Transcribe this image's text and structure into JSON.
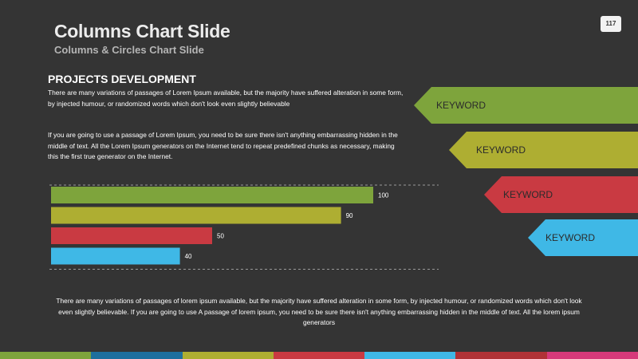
{
  "slide": {
    "title": "Columns Chart Slide",
    "subtitle": "Columns & Circles Chart Slide",
    "page_number": "117",
    "section_heading": "PROJECTS DEVELOPMENT",
    "paragraph_1": "There are many variations of passages of Lorem Ipsum available, but the majority have suffered alteration in some form, by injected humour, or randomized words which don't look even slightly believable",
    "paragraph_2": "If you are going to use a passage of Lorem Ipsum, you need to be sure there isn't anything embarrassing hidden in the middle of text. All the Lorem Ipsum generators on the Internet tend to repeat predefined chunks as necessary, making this the first true generator on the Internet.",
    "footer_text": "There are many variations of passages of lorem ipsum available, but the majority have suffered alteration in some form, by injected humour, or randomized words which don't look even slightly believable. If you are going to use A passage of lorem ipsum, you need to be sure there isn't anything embarrassing hidden in the middle of text. All the lorem ipsum generators"
  },
  "keywords": [
    {
      "label": "KEYWORD",
      "color": "#7ea43c"
    },
    {
      "label": "KEYWORD",
      "color": "#aeae32"
    },
    {
      "label": "KEYWORD",
      "color": "#c93a42"
    },
    {
      "label": "KEYWORD",
      "color": "#3fb8e6"
    }
  ],
  "chart_data": {
    "type": "bar",
    "orientation": "horizontal",
    "values": [
      100,
      90,
      50,
      40
    ],
    "data_labels": [
      "100",
      "90",
      "50",
      "40"
    ],
    "colors": [
      "#7ea43c",
      "#aeae32",
      "#c93a42",
      "#3fb8e6"
    ],
    "xlim": [
      0,
      100
    ],
    "grid": true,
    "legend": "none"
  },
  "bottom_strip_colors": [
    "#7ea43c",
    "#1e6f9e",
    "#aeae32",
    "#c93a42",
    "#3fb8e6",
    "#b03236",
    "#d63a7a"
  ]
}
